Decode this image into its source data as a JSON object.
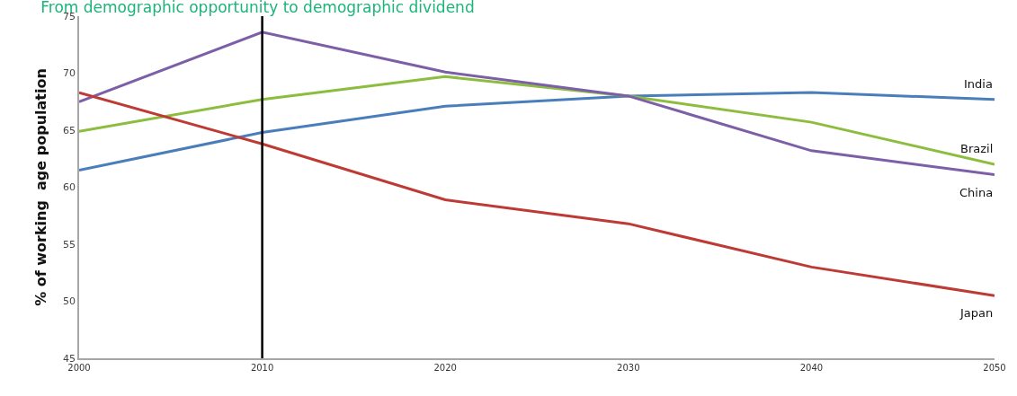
{
  "chart_data": {
    "type": "line",
    "title": "From demographic opportunity to demographic dividend",
    "ylabel": "% of working  age population",
    "x": [
      2000,
      2010,
      2020,
      2030,
      2040,
      2050
    ],
    "series": [
      {
        "name": "India",
        "color": "#4a7ebb",
        "values": [
          61.5,
          64.8,
          67.1,
          68.0,
          68.3,
          67.7
        ]
      },
      {
        "name": "Brazil",
        "color": "#8cbd3f",
        "values": [
          64.9,
          67.7,
          69.7,
          68.0,
          65.7,
          62.0
        ]
      },
      {
        "name": "China",
        "color": "#7d5fa8",
        "values": [
          67.5,
          73.6,
          70.1,
          68.0,
          63.2,
          61.1
        ]
      },
      {
        "name": "Japan",
        "color": "#be3a35",
        "values": [
          68.3,
          63.8,
          58.9,
          56.8,
          53.0,
          50.5
        ]
      }
    ],
    "xlim": [
      2000,
      2050
    ],
    "xticks": [
      2000,
      2010,
      2020,
      2030,
      2040,
      2050
    ],
    "ylim": [
      45,
      75
    ],
    "yticks": [
      45,
      50,
      55,
      60,
      65,
      70,
      75
    ],
    "ref_lines": [
      {
        "axis": "x",
        "value": 2010,
        "color": "#000000"
      }
    ],
    "grid": false,
    "legend": false,
    "marker": "none",
    "line_style": "solid"
  }
}
